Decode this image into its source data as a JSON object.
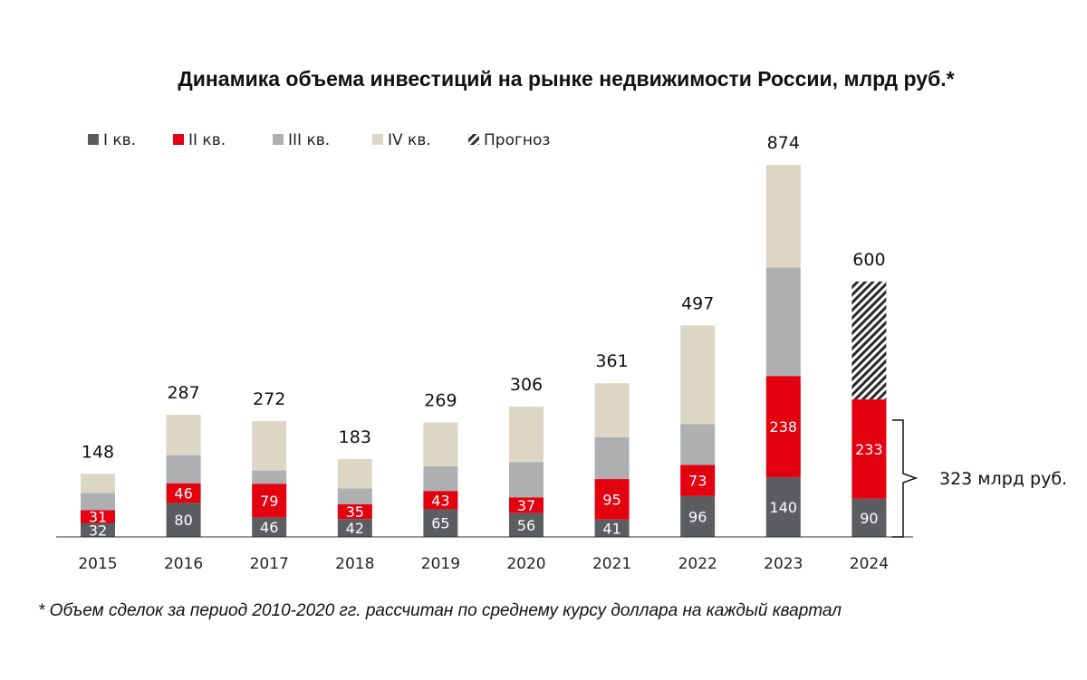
{
  "chart_data": {
    "type": "bar",
    "stacked": true,
    "title": "Динамика объема инвестиций на рынке недвижимости России, млрд руб.*",
    "categories": [
      "2015",
      "2016",
      "2017",
      "2018",
      "2019",
      "2020",
      "2021",
      "2022",
      "2023",
      "2024"
    ],
    "series": [
      {
        "name": "I кв.",
        "color": "#5b5d60",
        "values": [
          32,
          80,
          46,
          42,
          65,
          56,
          41,
          96,
          140,
          90
        ],
        "labels": [
          "32",
          "80",
          "46",
          "42",
          "65",
          "56",
          "41",
          "96",
          "140",
          "90"
        ]
      },
      {
        "name": "II кв.",
        "color": "#e3000f",
        "values": [
          31,
          46,
          79,
          35,
          43,
          37,
          95,
          73,
          238,
          233
        ],
        "labels": [
          "31",
          "46",
          "79",
          "35",
          "43",
          "37",
          "95",
          "73",
          "238",
          "233"
        ]
      },
      {
        "name": "III кв.",
        "color": "#aeafb1",
        "values": [
          40,
          66,
          31,
          37,
          58,
          83,
          98,
          96,
          255,
          null
        ],
        "labels": []
      },
      {
        "name": "IV кв.",
        "color": "#dcd6c4",
        "values": [
          45,
          95,
          116,
          69,
          103,
          130,
          127,
          232,
          241,
          null
        ],
        "labels": []
      },
      {
        "name": "Прогноз",
        "color": "hatch",
        "values": [
          null,
          null,
          null,
          null,
          null,
          null,
          null,
          null,
          null,
          277
        ],
        "labels": []
      }
    ],
    "totals": [
      "148",
      "287",
      "272",
      "183",
      "269",
      "306",
      "361",
      "497",
      "874",
      "600"
    ],
    "ylim": [
      0,
      874
    ],
    "grid": false,
    "legend_position": "top-left",
    "annotation": "323 млрд руб."
  },
  "footnote": "* Объем сделок за период 2010-2020 гг. рассчитан по среднему курсу доллара на каждый квартал"
}
